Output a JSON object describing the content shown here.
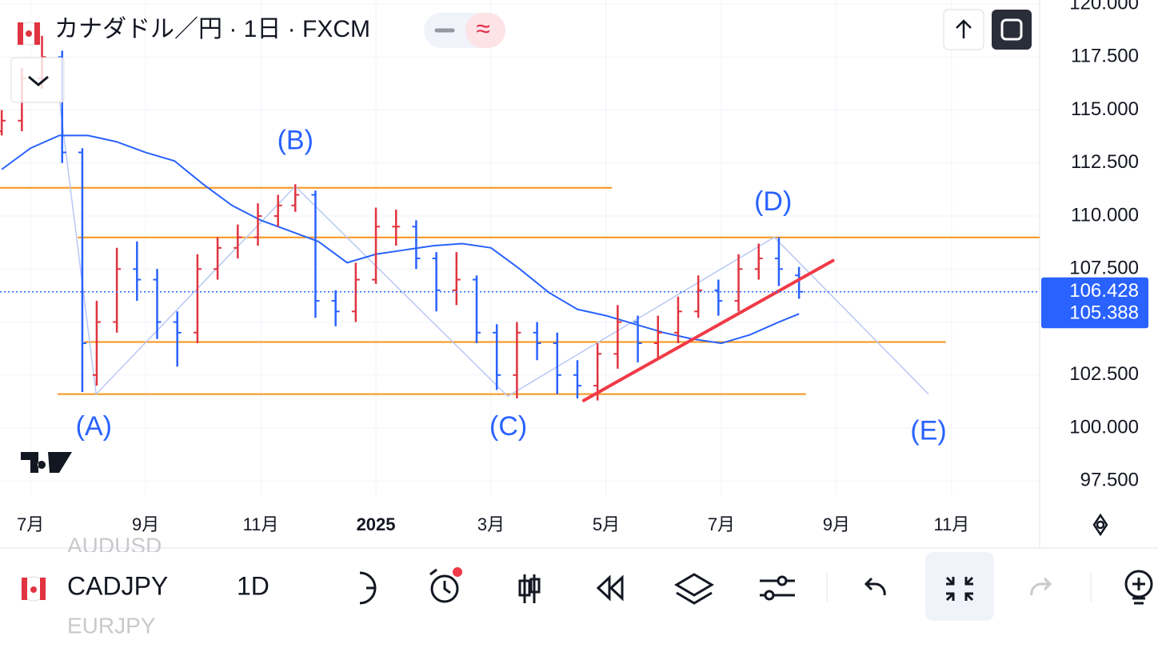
{
  "header": {
    "title": "カナダドル／円 · 1日 · FXCM"
  },
  "toolbar": {
    "symbol": "CADJPY",
    "interval": "1D",
    "watchlist_above": "AUDUSD",
    "watchlist_below": "EURJPY"
  },
  "chart_data": {
    "type": "ohlc",
    "x": [
      -0.5,
      -0.15,
      0.2,
      0.55,
      0.9,
      1.15,
      1.5,
      1.85,
      2.2,
      2.55,
      2.9,
      3.25,
      3.6,
      3.95,
      4.3,
      4.6,
      4.95,
      5.3,
      5.65,
      6.0,
      6.35,
      6.7,
      7.05,
      7.4,
      7.75,
      8.1,
      8.45,
      8.8,
      9.15,
      9.5,
      9.85,
      10.2,
      10.55,
      10.9,
      11.25,
      11.6,
      11.95,
      12.3,
      12.65,
      13.0,
      13.35
    ],
    "open": [
      114,
      114.5,
      116.5,
      117.5,
      113,
      102.5,
      105,
      107.5,
      107,
      105,
      104.5,
      107.5,
      108.5,
      109,
      110,
      110.5,
      111,
      106,
      105.5,
      107,
      109.5,
      109.5,
      108,
      106.5,
      107,
      104.5,
      102.5,
      104.5,
      104,
      102.5,
      102,
      103.5,
      105,
      104,
      104.5,
      105.5,
      106.5,
      106,
      107.5,
      108,
      107.2
    ],
    "high": [
      115,
      117,
      118.5,
      117.8,
      113.2,
      106,
      108.5,
      108.8,
      107.5,
      105.5,
      108.2,
      109,
      109.6,
      110.6,
      111,
      111.5,
      111.2,
      106.5,
      107.8,
      110.4,
      110.3,
      109.8,
      108.3,
      108.3,
      107.2,
      104.9,
      105,
      105,
      104.5,
      103.2,
      104,
      105.8,
      105.3,
      105.3,
      106.2,
      107.2,
      107,
      108.2,
      108.7,
      109,
      107.6
    ],
    "low": [
      113.8,
      114,
      116,
      112.5,
      101.7,
      102,
      104.5,
      106,
      104.2,
      102.9,
      104,
      107,
      108,
      108.6,
      109.5,
      110.2,
      105.2,
      104.8,
      105,
      106.8,
      108.6,
      107.5,
      105.5,
      105.8,
      104,
      101.8,
      101.4,
      103.2,
      101.6,
      101.4,
      101.3,
      102.8,
      103.1,
      103.3,
      104,
      105.2,
      105.3,
      105.5,
      107,
      106.7,
      106.1
    ],
    "close": [
      114.5,
      116.5,
      117.5,
      113,
      104,
      105,
      107.5,
      107,
      105,
      104.5,
      107.5,
      108.5,
      109,
      110,
      110.5,
      111,
      106,
      105.5,
      107,
      109.5,
      109.5,
      108,
      106.5,
      107,
      104.5,
      102.5,
      104.5,
      104,
      102.5,
      102,
      103.5,
      105,
      104,
      104.5,
      105.5,
      106.5,
      106,
      107.5,
      108,
      107.5,
      106.428
    ],
    "up_color": "#e03440",
    "down_color": "#2962ff",
    "moving_average": {
      "color": "#2962ff",
      "x": [
        -0.5,
        0,
        0.5,
        1,
        1.5,
        2,
        2.5,
        3,
        3.5,
        4,
        4.5,
        5,
        5.5,
        6,
        6.5,
        7,
        7.5,
        8,
        8.5,
        9,
        9.5,
        10,
        10.5,
        11,
        11.5,
        12,
        12.5,
        13,
        13.35
      ],
      "values": [
        112.2,
        113.2,
        113.8,
        113.8,
        113.5,
        113,
        112.6,
        111.5,
        110.5,
        109.8,
        109.3,
        108.8,
        107.8,
        108.2,
        108.4,
        108.6,
        108.7,
        108.5,
        107.5,
        106.4,
        105.6,
        105.3,
        104.9,
        104.5,
        104.2,
        104.0,
        104.4,
        105.0,
        105.388
      ]
    },
    "levels": [
      {
        "value": 111.33,
        "x": [
          -0.53,
          10.1
        ]
      },
      {
        "value": 108.99,
        "x": [
          0.82,
          17.53
        ]
      },
      {
        "value": 104.06,
        "x": [
          0.93,
          15.9
        ]
      },
      {
        "value": 101.6,
        "x": [
          0.47,
          13.47
        ]
      }
    ],
    "level_color": "#f7931a",
    "wave": {
      "color": "#b9c9f5",
      "x": [
        0.5,
        1.14,
        4.6,
        8.29,
        12.92,
        15.6
      ],
      "values": [
        115.5,
        101.6,
        111.4,
        101.5,
        109,
        101.6
      ]
    },
    "trendline": {
      "color": "#f03a47",
      "x": [
        9.61,
        13.94
      ],
      "values": [
        101.3,
        107.9
      ]
    },
    "annotations": [
      {
        "text": "(A)",
        "x": 1.1,
        "y": 100.0
      },
      {
        "text": "(B)",
        "x": 4.6,
        "y": 113.5
      },
      {
        "text": "(C)",
        "x": 8.3,
        "y": 100.0
      },
      {
        "text": "(D)",
        "x": 12.9,
        "y": 110.6
      },
      {
        "text": "(E)",
        "x": 15.6,
        "y": 99.8
      }
    ],
    "price_labels": [
      {
        "value": 106.428,
        "label": "106.428"
      },
      {
        "value": 105.388,
        "label": "105.388"
      }
    ],
    "xlim": [
      -0.53,
      17.53
    ],
    "xticks": [
      {
        "value": 0,
        "label": "7月"
      },
      {
        "value": 2,
        "label": "9月"
      },
      {
        "value": 4,
        "label": "11月"
      },
      {
        "value": 6,
        "label": "2025"
      },
      {
        "value": 8,
        "label": "3月"
      },
      {
        "value": 10,
        "label": "5月"
      },
      {
        "value": 12,
        "label": "7月"
      },
      {
        "value": 14,
        "label": "9月"
      },
      {
        "value": 16,
        "label": "11月"
      }
    ],
    "ylim": [
      96.04,
      120.19
    ],
    "yticks": [
      {
        "value": 120,
        "label": "120.000"
      },
      {
        "value": 117.5,
        "label": "117.500"
      },
      {
        "value": 115,
        "label": "115.000"
      },
      {
        "value": 112.5,
        "label": "112.500"
      },
      {
        "value": 110,
        "label": "110.000"
      },
      {
        "value": 107.5,
        "label": "107.500"
      },
      {
        "value": 105,
        "label": "105.000"
      },
      {
        "value": 102.5,
        "label": "102.500"
      },
      {
        "value": 100,
        "label": "100.000"
      },
      {
        "value": 97.5,
        "label": "97.500"
      }
    ],
    "grid": true
  }
}
